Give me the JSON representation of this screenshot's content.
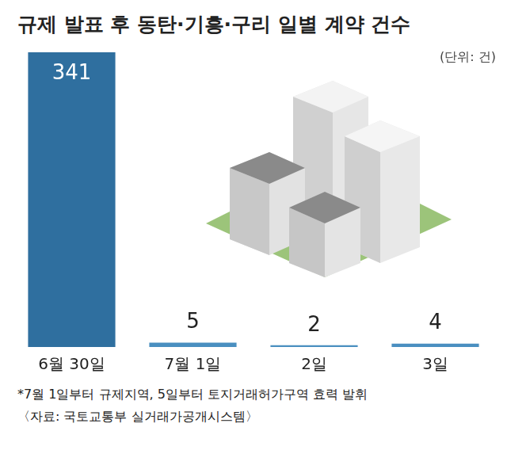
{
  "chart_data": {
    "type": "bar",
    "title": "규제 발표 후 동탄·기흥·구리 일별 계약 건수",
    "subtitle": "(단위: 건)",
    "categories": [
      "6월 30일",
      "7월 1일",
      "2일",
      "3일"
    ],
    "values": [
      341,
      5,
      2,
      4
    ],
    "colors": [
      "#2f6f9f",
      "#4a8fc0",
      "#4a8fc0",
      "#4a8fc0"
    ],
    "ylim": [
      0,
      341
    ],
    "yticks": [],
    "grid": false,
    "data_labels": true,
    "tick_labels": "x",
    "annotations": [
      "*7월 1일부터 규제지역, 5일부터 토지거래허가구역 효력 발휘",
      "〈자료: 국토교통부 실거래가공개시스템〉"
    ]
  }
}
